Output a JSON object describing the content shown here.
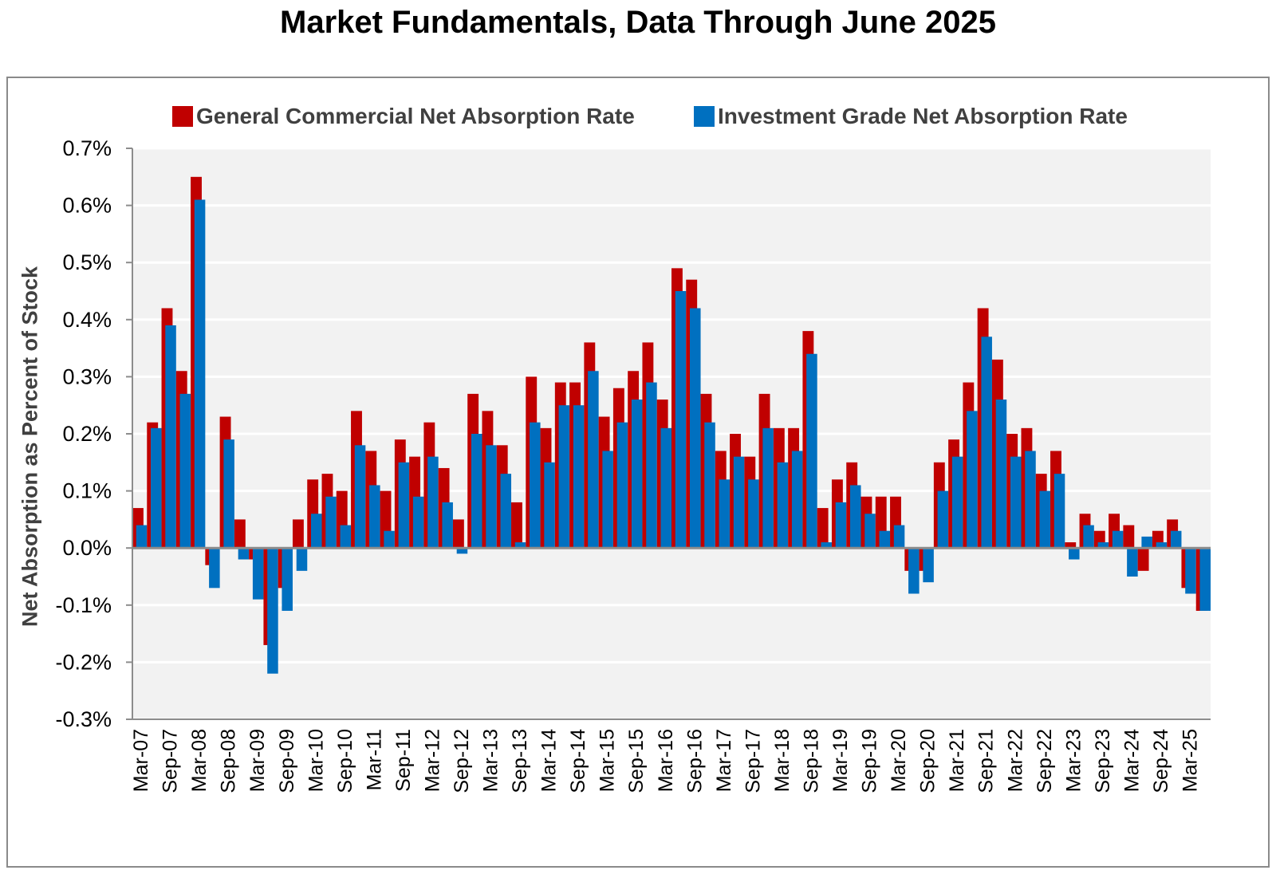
{
  "chart_data": {
    "type": "bar",
    "title": "Market Fundamentals, Data Through June 2025",
    "xlabel": "",
    "ylabel": "Net Absorption as Percent of Stock",
    "ylim": [
      -0.3,
      0.7
    ],
    "yticks": [
      "0.7%",
      "0.6%",
      "0.5%",
      "0.4%",
      "0.3%",
      "0.2%",
      "0.1%",
      "0.0%",
      "-0.1%",
      "-0.2%",
      "-0.3%"
    ],
    "ytick_values": [
      0.7,
      0.6,
      0.5,
      0.4,
      0.3,
      0.2,
      0.1,
      0.0,
      -0.1,
      -0.2,
      -0.3
    ],
    "xtick_labels": [
      "Mar-07",
      "Sep-07",
      "Mar-08",
      "Sep-08",
      "Mar-09",
      "Sep-09",
      "Mar-10",
      "Sep-10",
      "Mar-11",
      "Sep-11",
      "Mar-12",
      "Sep-12",
      "Mar-13",
      "Sep-13",
      "Mar-14",
      "Sep-14",
      "Mar-15",
      "Sep-15",
      "Mar-16",
      "Sep-16",
      "Mar-17",
      "Sep-17",
      "Mar-18",
      "Sep-18",
      "Mar-19",
      "Sep-19",
      "Mar-20",
      "Sep-20",
      "Mar-21",
      "Sep-21",
      "Mar-22",
      "Sep-22",
      "Mar-23",
      "Sep-23",
      "Mar-24",
      "Sep-24",
      "Mar-25"
    ],
    "period_start": "Mar-07",
    "period_end": "Jun-25",
    "legend_position": "top",
    "colors": {
      "general": "#C00000",
      "investment": "#0070C0",
      "plot_bg": "#F2F2F2",
      "grid": "#FFFFFF",
      "axis": "#8C8C8C"
    },
    "series": [
      {
        "name": "General Commercial Net Absorption Rate",
        "values": [
          0.07,
          0.22,
          0.42,
          0.31,
          0.65,
          -0.03,
          0.23,
          0.05,
          -0.02,
          -0.17,
          -0.07,
          0.05,
          0.12,
          0.13,
          0.1,
          0.24,
          0.17,
          0.1,
          0.19,
          0.16,
          0.22,
          0.14,
          0.05,
          0.27,
          0.24,
          0.18,
          0.08,
          0.3,
          0.21,
          0.29,
          0.29,
          0.36,
          0.23,
          0.28,
          0.31,
          0.36,
          0.26,
          0.49,
          0.47,
          0.27,
          0.17,
          0.2,
          0.16,
          0.27,
          0.21,
          0.21,
          0.38,
          0.07,
          0.12,
          0.15,
          0.09,
          0.09,
          0.09,
          -0.04,
          -0.04,
          0.15,
          0.19,
          0.29,
          0.42,
          0.33,
          0.2,
          0.21,
          0.13,
          0.17,
          0.01,
          0.06,
          0.03,
          0.06,
          0.04,
          -0.04,
          0.03,
          0.05,
          -0.07,
          -0.11
        ]
      },
      {
        "name": "Investment Grade Net Absorption Rate",
        "values": [
          0.04,
          0.21,
          0.39,
          0.27,
          0.61,
          -0.07,
          0.19,
          -0.02,
          -0.09,
          -0.22,
          -0.11,
          -0.04,
          0.06,
          0.09,
          0.04,
          0.18,
          0.11,
          0.03,
          0.15,
          0.09,
          0.16,
          0.08,
          -0.01,
          0.2,
          0.18,
          0.13,
          0.01,
          0.22,
          0.15,
          0.25,
          0.25,
          0.31,
          0.17,
          0.22,
          0.26,
          0.29,
          0.21,
          0.45,
          0.42,
          0.22,
          0.12,
          0.16,
          0.12,
          0.21,
          0.15,
          0.17,
          0.34,
          0.01,
          0.08,
          0.11,
          0.06,
          0.03,
          0.04,
          -0.08,
          -0.06,
          0.1,
          0.16,
          0.24,
          0.37,
          0.26,
          0.16,
          0.17,
          0.1,
          0.13,
          -0.02,
          0.04,
          0.01,
          0.03,
          -0.05,
          0.02,
          0.01,
          0.03,
          -0.08,
          -0.11
        ]
      }
    ]
  }
}
